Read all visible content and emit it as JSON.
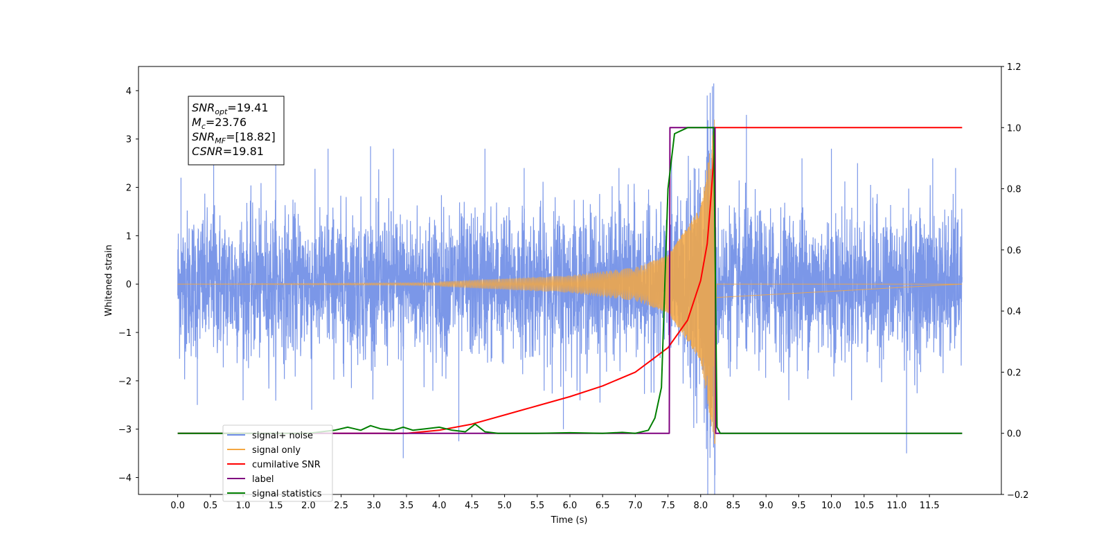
{
  "chart_data": {
    "type": "line",
    "title": "",
    "xlabel": "Time (s)",
    "ylabel": "Whitened strain",
    "ylabel_right": "",
    "xlim": [
      -0.6,
      12.6
    ],
    "ylim": [
      -4.35,
      4.5
    ],
    "ylim_right": [
      -0.2,
      1.2
    ],
    "xticks": [
      "0.0",
      "0.5",
      "1.0",
      "1.5",
      "2.0",
      "2.5",
      "3.0",
      "3.5",
      "4.0",
      "4.5",
      "5.0",
      "5.5",
      "6.0",
      "6.5",
      "7.0",
      "7.5",
      "8.0",
      "8.5",
      "9.0",
      "9.5",
      "10.0",
      "10.5",
      "11.0",
      "11.5"
    ],
    "yticks": [
      "4",
      "3",
      "2",
      "1",
      "0",
      "−1",
      "−2",
      "−3",
      "−4"
    ],
    "yticks_right": [
      "1.2",
      "1.0",
      "0.8",
      "0.6",
      "0.4",
      "0.2",
      "0.0",
      "−0.2"
    ],
    "grid": false,
    "legend_position": "lower-left",
    "annotation": {
      "lines": [
        {
          "sym": "SNR",
          "sub": "opt",
          "value": "=19.41"
        },
        {
          "sym": "M",
          "sub": "c",
          "value": "=23.76"
        },
        {
          "sym": "SNR",
          "sub": "MF",
          "value": "=[18.82]"
        },
        {
          "sym": "CSNR",
          "sub": "",
          "value": "=19.81"
        }
      ]
    },
    "series": [
      {
        "name": "signal+ noise",
        "color": "#6d8ce6",
        "axis": "left",
        "kind": "noise",
        "t_range": [
          0.0,
          12.0
        ],
        "amplitude": 1.0,
        "peak_values": [
          {
            "x": 0.05,
            "y": 2.2
          },
          {
            "x": 0.3,
            "y": -2.5
          },
          {
            "x": 0.55,
            "y": 2.7
          },
          {
            "x": 1.5,
            "y": 2.5
          },
          {
            "x": 2.05,
            "y": -2.6
          },
          {
            "x": 2.3,
            "y": 2.8
          },
          {
            "x": 2.95,
            "y": 2.85
          },
          {
            "x": 3.3,
            "y": 2.8
          },
          {
            "x": 3.45,
            "y": -3.6
          },
          {
            "x": 4.3,
            "y": -3.25
          },
          {
            "x": 4.7,
            "y": 2.8
          },
          {
            "x": 5.3,
            "y": 2.4
          },
          {
            "x": 5.9,
            "y": -3.0
          },
          {
            "x": 6.75,
            "y": 2.4
          },
          {
            "x": 7.9,
            "y": 2.4
          },
          {
            "x": 8.1,
            "y": 3.9
          },
          {
            "x": 8.2,
            "y": 4.15
          },
          {
            "x": 8.22,
            "y": -3.95
          },
          {
            "x": 8.7,
            "y": 3.5
          },
          {
            "x": 8.2,
            "y": -3.2
          },
          {
            "x": 9.55,
            "y": 2.6
          },
          {
            "x": 10.0,
            "y": 2.8
          },
          {
            "x": 10.4,
            "y": 2.5
          },
          {
            "x": 11.15,
            "y": -3.5
          },
          {
            "x": 11.55,
            "y": 2.6
          },
          {
            "x": 11.9,
            "y": 2.4
          }
        ]
      },
      {
        "name": "signal only",
        "color": "#f5a742",
        "axis": "left",
        "kind": "chirp",
        "t_start": 0.0,
        "t_merger": 8.22,
        "t_end": 12.0,
        "peak_amplitude": 3.4,
        "amplitude_at": [
          {
            "x": 4.0,
            "y": 0.05
          },
          {
            "x": 6.0,
            "y": 0.18
          },
          {
            "x": 7.0,
            "y": 0.35
          },
          {
            "x": 7.5,
            "y": 0.6
          },
          {
            "x": 8.0,
            "y": 1.6
          },
          {
            "x": 8.22,
            "y": 3.4
          }
        ]
      },
      {
        "name": "cumilative SNR",
        "color": "#ff0000",
        "axis": "right",
        "x": [
          0.0,
          3.0,
          3.5,
          4.0,
          4.5,
          5.0,
          5.5,
          6.0,
          6.5,
          7.0,
          7.5,
          7.8,
          8.0,
          8.1,
          8.15,
          8.2,
          8.22,
          8.25,
          12.0
        ],
        "y": [
          0.0,
          0.0,
          0.0,
          0.01,
          0.03,
          0.06,
          0.09,
          0.12,
          0.155,
          0.2,
          0.28,
          0.37,
          0.5,
          0.62,
          0.75,
          0.9,
          1.0,
          1.0,
          1.0
        ]
      },
      {
        "name": "label",
        "color": "#7f007f",
        "axis": "right",
        "x": [
          0.0,
          7.52,
          7.53,
          8.22,
          8.23,
          12.0
        ],
        "y": [
          0.0,
          0.0,
          1.0,
          1.0,
          0.0,
          0.0
        ]
      },
      {
        "name": "signal statistics",
        "color": "#007f00",
        "axis": "right",
        "x": [
          0.0,
          2.0,
          2.2,
          2.4,
          2.6,
          2.8,
          2.95,
          3.1,
          3.3,
          3.45,
          3.6,
          3.8,
          4.0,
          4.2,
          4.4,
          4.55,
          4.7,
          4.9,
          5.5,
          6.0,
          6.5,
          6.8,
          7.0,
          7.2,
          7.3,
          7.4,
          7.5,
          7.6,
          7.7,
          7.8,
          7.9,
          8.0,
          8.1,
          8.2,
          8.25,
          8.3,
          12.0
        ],
        "y": [
          0.0,
          0.0,
          0.005,
          0.01,
          0.02,
          0.01,
          0.025,
          0.015,
          0.01,
          0.02,
          0.01,
          0.015,
          0.02,
          0.01,
          0.005,
          0.03,
          0.005,
          0.0,
          0.0,
          0.002,
          0.0,
          0.003,
          0.0,
          0.01,
          0.05,
          0.15,
          0.8,
          0.98,
          0.99,
          1.0,
          1.0,
          1.0,
          1.0,
          1.0,
          0.02,
          0.0,
          0.0
        ]
      }
    ]
  }
}
